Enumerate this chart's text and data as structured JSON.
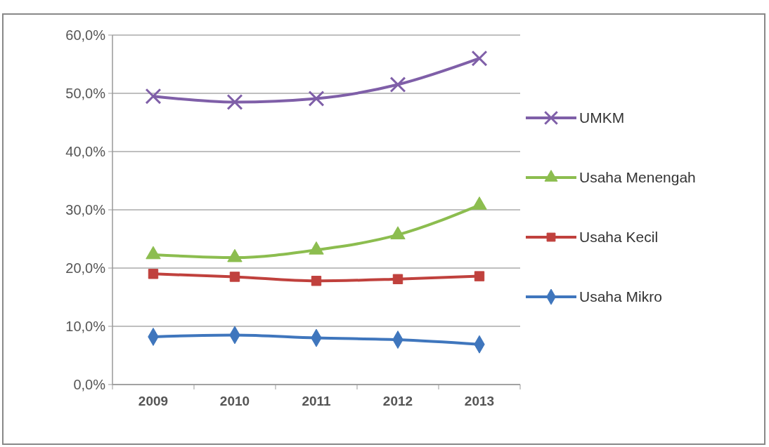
{
  "chart_data": {
    "type": "line",
    "categories": [
      "2009",
      "2010",
      "2011",
      "2012",
      "2013"
    ],
    "series": [
      {
        "name": "UMKM",
        "color": "#7f5fa8",
        "marker": "cross",
        "values": [
          49.5,
          48.5,
          49.1,
          51.5,
          56.0
        ]
      },
      {
        "name": "Usaha Menengah",
        "color": "#8cbd4f",
        "marker": "triangle",
        "values": [
          22.3,
          21.8,
          23.1,
          25.7,
          30.8
        ]
      },
      {
        "name": "Usaha Kecil",
        "color": "#c0413d",
        "marker": "square",
        "values": [
          19.0,
          18.5,
          17.8,
          18.1,
          18.6
        ]
      },
      {
        "name": "Usaha Mikro",
        "color": "#3f76bd",
        "marker": "diamond",
        "values": [
          8.2,
          8.5,
          8.0,
          7.7,
          6.9
        ]
      }
    ],
    "ylim": [
      0,
      60
    ],
    "yticks": [
      {
        "value": 0,
        "label": "0,0%"
      },
      {
        "value": 10,
        "label": "10,0%"
      },
      {
        "value": 20,
        "label": "20,0%"
      },
      {
        "value": 30,
        "label": "30,0%"
      },
      {
        "value": 40,
        "label": "40,0%"
      },
      {
        "value": 50,
        "label": "50,0%"
      },
      {
        "value": 60,
        "label": "60,0%"
      }
    ],
    "grid": "y",
    "legend": "right"
  }
}
